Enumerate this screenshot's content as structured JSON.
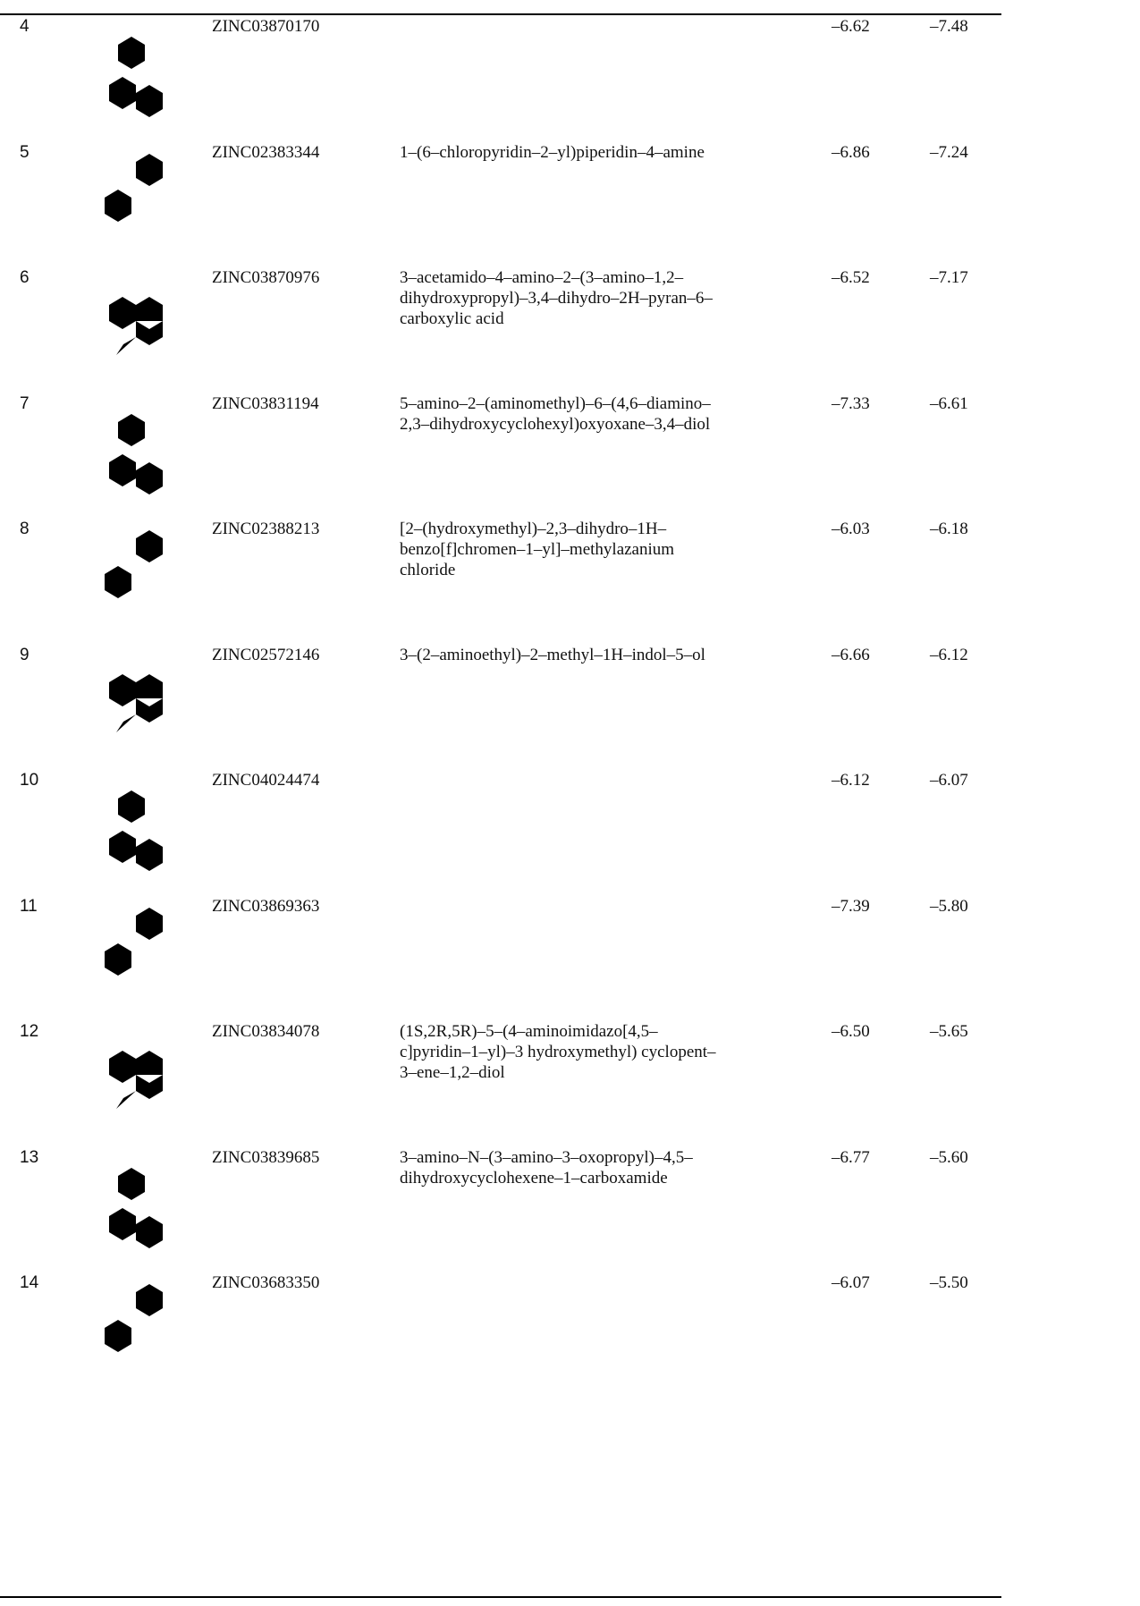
{
  "table": {
    "rows": [
      {
        "no": "4",
        "zinc": "ZINC03870170",
        "s1": "–6.62",
        "s2": "–7.48"
      },
      {
        "no": "5",
        "zinc": "ZINC02383344",
        "name": [
          "1–(6–chloropyridin–2–yl)piperidin–4–amine"
        ],
        "s1": "–6.86",
        "s2": "–7.24"
      },
      {
        "no": "6",
        "zinc": "ZINC03870976",
        "name": [
          "3–acetamido–4–amino–2–(3–amino–1,2–",
          "dihydroxypropyl)–3,4–dihydro–2H–pyran–6–",
          "carboxylic acid"
        ],
        "s1": "–6.52",
        "s2": "–7.17"
      },
      {
        "no": "7",
        "zinc": "ZINC03831194",
        "name": [
          "5–amino–2–(aminomethyl)–6–(4,6–diamino–",
          "2,3–dihydroxycyclohexyl)oxyoxane–3,4–diol"
        ],
        "s1": "–7.33",
        "s2": "–6.61"
      },
      {
        "no": "8",
        "zinc": "ZINC02388213",
        "name": [
          "[2–(hydroxymethyl)–2,3–dihydro–1H–",
          "benzo[f]chromen–1–yl]–methylazanium",
          "chloride"
        ],
        "s1": "–6.03",
        "s2": "–6.18"
      },
      {
        "no": "9",
        "zinc": "ZINC02572146",
        "name": [
          "3–(2–aminoethyl)–2–methyl–1H–indol–5–ol"
        ],
        "s1": "–6.66",
        "s2": "–6.12"
      },
      {
        "no": "10",
        "zinc": "ZINC04024474",
        "s1": "–6.12",
        "s2": "–6.07"
      },
      {
        "no": "11",
        "zinc": "ZINC03869363",
        "s1": "–7.39",
        "s2": "–5.80"
      },
      {
        "no": "12",
        "zinc": "ZINC03834078",
        "name": [
          "(1S,2R,5R)–5–(4–aminoimidazo[4,5–",
          "c]pyridin–1–yl)–3 hydroxymethyl) cyclopent–",
          "3–ene–1,2–diol"
        ],
        "s1": "–6.50",
        "s2": "–5.65"
      },
      {
        "no": "13",
        "zinc": "ZINC03839685",
        "name": [
          "3–amino–N–(3–amino–3–oxopropyl)–4,5–",
          "dihydroxycyclohexene–1–carboxamide"
        ],
        "s1": "–6.77",
        "s2": "–5.60"
      },
      {
        "no": "14",
        "zinc": "ZINC03683350",
        "s1": "–6.07",
        "s2": "–5.50"
      }
    ]
  }
}
